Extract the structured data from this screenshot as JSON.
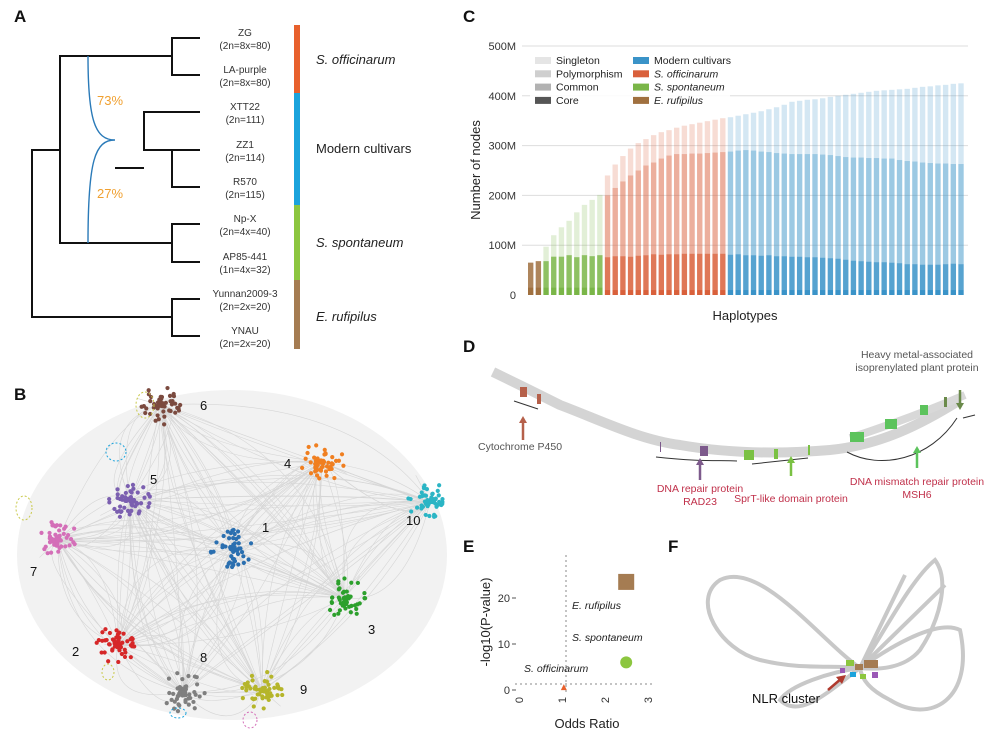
{
  "panels": {
    "a": "A",
    "b": "B",
    "c": "C",
    "d": "D",
    "e": "E",
    "f": "F"
  },
  "panel_a": {
    "leaves": [
      {
        "name": "ZG",
        "ploidy": "(2n=8x=80)"
      },
      {
        "name": "LA-purple",
        "ploidy": "(2n=8x=80)"
      },
      {
        "name": "XTT22",
        "ploidy": "(2n=111)"
      },
      {
        "name": "ZZ1",
        "ploidy": "(2n=114)"
      },
      {
        "name": "R570",
        "ploidy": "(2n=115)"
      },
      {
        "name": "Np-X",
        "ploidy": "(2n=4x=40)"
      },
      {
        "name": "AP85-441",
        "ploidy": "(1n=4x=32)"
      },
      {
        "name": "Yunnan2009-3",
        "ploidy": "(2n=2x=20)"
      },
      {
        "name": "YNAU",
        "ploidy": "(2n=2x=20)"
      }
    ],
    "groups": [
      {
        "name": "S. officinarum",
        "color": "#e8602c"
      },
      {
        "name": "Modern cultivars",
        "color": "#1ba3dc"
      },
      {
        "name": "S. spontaneum",
        "color": "#8cc63f"
      },
      {
        "name": "E. rufipilus",
        "color": "#a57c52"
      }
    ],
    "admixture": {
      "upper": "73%",
      "lower": "27%",
      "line_color": "#2a7ab8",
      "label_color": "#f0a030"
    }
  },
  "panel_b": {
    "clusters": [
      {
        "label": "1",
        "color": "#2a6fb0"
      },
      {
        "label": "2",
        "color": "#d62728"
      },
      {
        "label": "3",
        "color": "#2ca02c"
      },
      {
        "label": "4",
        "color": "#f07f20"
      },
      {
        "label": "5",
        "color": "#7b5fb0"
      },
      {
        "label": "6",
        "color": "#7b4a3f"
      },
      {
        "label": "7",
        "color": "#d46fb8"
      },
      {
        "label": "8",
        "color": "#7f7f7f"
      },
      {
        "label": "9",
        "color": "#b5b52a"
      },
      {
        "label": "10",
        "color": "#2bb5c5"
      }
    ]
  },
  "chart_data": [
    {
      "type": "bar",
      "stacked": true,
      "xlabel": "Haplotypes",
      "ylabel": "Number of nodes",
      "ylim": [
        0,
        500
      ],
      "unit": "M",
      "yticks": [
        "0",
        "100M",
        "200M",
        "300M",
        "400M",
        "500M"
      ],
      "grid": true,
      "legend_position": "top-left",
      "tier_legend": [
        "Singleton",
        "Polymorphism",
        "Common",
        "Core"
      ],
      "groups": [
        {
          "name": "E. rufipilus",
          "color": "#a0703f",
          "total": [
            65,
            68
          ],
          "polymorphism": [
            65,
            68
          ],
          "common": [
            65,
            68
          ],
          "core": [
            15,
            15
          ]
        },
        {
          "name": "S. spontaneum",
          "color": "#7ab648",
          "total": [
            97,
            120,
            136,
            149,
            166,
            181,
            191,
            201
          ],
          "polymorphism": [
            68,
            77,
            77,
            80,
            76,
            80,
            78,
            80
          ],
          "common": [
            68,
            77,
            77,
            80,
            76,
            80,
            78,
            80
          ],
          "core": [
            15,
            15,
            15,
            15,
            15,
            15,
            15,
            15
          ]
        },
        {
          "name": "S. officinarum",
          "color": "#d9603b",
          "total": [
            240,
            262,
            279,
            294,
            305,
            313,
            321,
            327,
            331,
            336,
            340,
            343,
            346,
            349,
            352,
            355
          ],
          "polymorphism": [
            200,
            215,
            228,
            240,
            250,
            260,
            266,
            274,
            280,
            283,
            283,
            284,
            284,
            285,
            286,
            287
          ],
          "common": [
            76,
            78,
            78,
            77,
            79,
            80,
            82,
            81,
            82,
            82,
            83,
            83,
            83,
            83,
            83,
            83
          ],
          "core": [
            10,
            10,
            10,
            10,
            10,
            10,
            10,
            10,
            10,
            10,
            10,
            10,
            10,
            10,
            10,
            10
          ]
        },
        {
          "name": "Modern cultivars",
          "color": "#3a93c8",
          "total": [
            357,
            360,
            363,
            366,
            369,
            373,
            377,
            382,
            388,
            390,
            392,
            393,
            395,
            398,
            400,
            402,
            404,
            406,
            408,
            410,
            411,
            412,
            413,
            414,
            416,
            418,
            419,
            421,
            422,
            424,
            425
          ],
          "polymorphism": [
            288,
            290,
            291,
            290,
            288,
            287,
            285,
            284,
            283,
            283,
            283,
            283,
            282,
            281,
            279,
            277,
            276,
            276,
            275,
            275,
            274,
            274,
            271,
            269,
            268,
            266,
            265,
            264,
            264,
            263,
            263
          ],
          "common": [
            81,
            82,
            80,
            80,
            79,
            80,
            78,
            78,
            77,
            77,
            76,
            76,
            75,
            74,
            73,
            71,
            69,
            68,
            67,
            66,
            66,
            65,
            64,
            62,
            62,
            61,
            61,
            61,
            62,
            63,
            62
          ],
          "core": [
            10,
            10,
            10,
            10,
            10,
            10,
            10,
            10,
            10,
            10,
            10,
            10,
            10,
            10,
            10,
            10,
            10,
            10,
            10,
            10,
            10,
            10,
            10,
            10,
            10,
            10,
            10,
            10,
            10,
            10,
            10
          ]
        }
      ],
      "legend_order": [
        "Modern cultivars",
        "S. officinarum",
        "S. spontaneum",
        "E. rufipilus"
      ]
    },
    {
      "type": "scatter",
      "xlabel": "Odds Ratio",
      "ylabel": "-log10(P-value)",
      "xlim": [
        0,
        3
      ],
      "ylim": [
        0,
        27
      ],
      "xticks": [
        "0",
        "1",
        "2",
        "3"
      ],
      "yticks": [
        "0",
        "10",
        "20"
      ],
      "reference_lines": {
        "x": 1,
        "y": 1.3
      },
      "points": [
        {
          "name": "E. rufipilus",
          "x": 2.4,
          "y": 23.5,
          "shape": "square",
          "color": "#a57c52"
        },
        {
          "name": "S. spontaneum",
          "x": 2.4,
          "y": 6,
          "shape": "circle",
          "color": "#8cc63f"
        },
        {
          "name": "S. officinarum",
          "x": 0.95,
          "y": 0.4,
          "shape": "triangle",
          "color": "#e8602c"
        }
      ]
    }
  ],
  "panel_d": {
    "annotations": [
      {
        "text": "Cytochrome P450",
        "color": "#555555",
        "arrow_color": "#b5604a"
      },
      {
        "text": "DNA repair protein",
        "text2": "RAD23",
        "color": "#c0304a",
        "arrow_color": "#7d5a8c"
      },
      {
        "text": "SprT-like domain protein",
        "color": "#c0304a",
        "arrow_color": "#7ac143"
      },
      {
        "text": "DNA mismatch repair protein",
        "text2": "MSH6",
        "color": "#c0304a",
        "arrow_color": "#5cc35c"
      },
      {
        "text": "Heavy metal-associated",
        "text2": "isoprenylated plant protein",
        "color": "#555555",
        "arrow_color": "#6a8a4a"
      }
    ]
  },
  "panel_f": {
    "annotation": "NLR cluster",
    "arrow_color": "#b03a2e"
  }
}
